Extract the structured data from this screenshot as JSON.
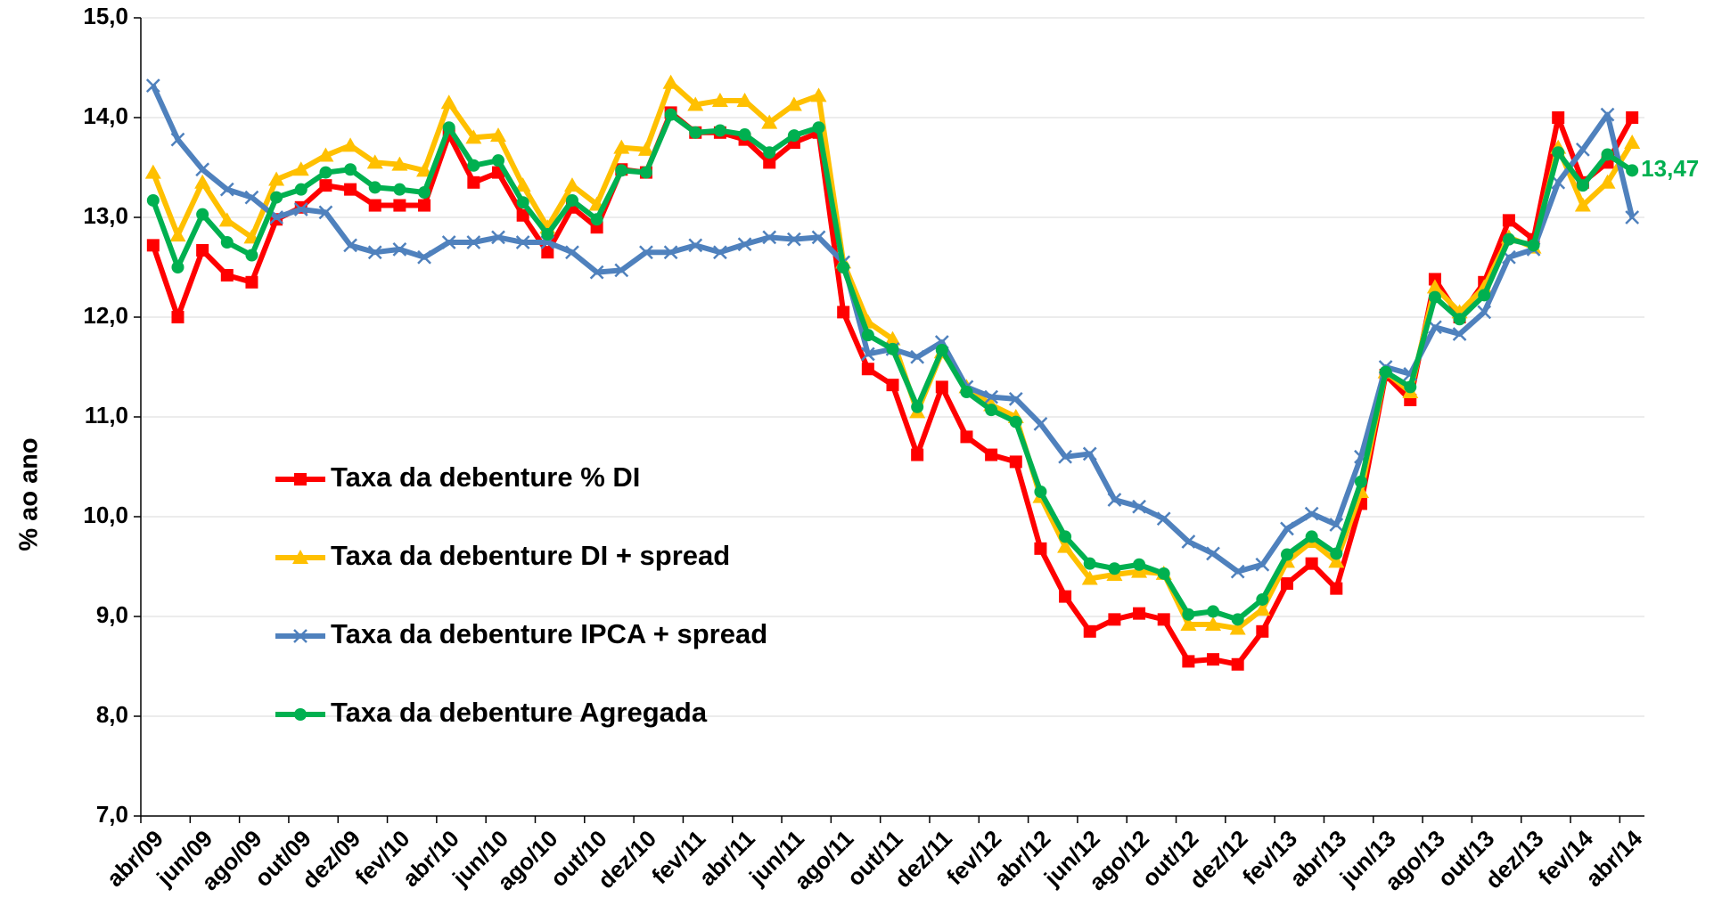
{
  "chart_data": {
    "type": "line",
    "y_label": "% ao ano",
    "categories": [
      "abr/09",
      null,
      "jun/09",
      null,
      "ago/09",
      null,
      "out/09",
      null,
      "dez/09",
      null,
      "fev/10",
      null,
      "abr/10",
      null,
      "jun/10",
      null,
      "ago/10",
      null,
      "out/10",
      null,
      "dez/10",
      null,
      "fev/11",
      null,
      "abr/11",
      null,
      "jun/11",
      null,
      "ago/11",
      null,
      "out/11",
      null,
      "dez/11",
      null,
      "fev/12",
      null,
      "abr/12",
      null,
      "jun/12",
      null,
      "ago/12",
      null,
      "out/12",
      null,
      "dez/12",
      null,
      "fev/13",
      null,
      "abr/13",
      null,
      "jun/13",
      null,
      "ago/13",
      null,
      "out/13",
      null,
      "dez/13",
      null,
      "fev/14",
      null,
      "abr/14"
    ],
    "series": [
      {
        "name": "Taxa da debenture % DI",
        "color": "#ff0000",
        "marker": "square",
        "values": [
          12.72,
          12.0,
          12.67,
          12.42,
          12.35,
          12.98,
          13.1,
          13.32,
          13.28,
          13.12,
          13.12,
          13.12,
          13.83,
          13.35,
          13.45,
          13.02,
          12.65,
          13.1,
          12.9,
          13.48,
          13.45,
          14.05,
          13.85,
          13.85,
          13.78,
          13.55,
          13.75,
          13.85,
          12.05,
          11.48,
          11.32,
          10.62,
          11.3,
          10.8,
          10.62,
          10.55,
          9.68,
          9.2,
          8.85,
          8.97,
          9.03,
          8.97,
          8.55,
          8.57,
          8.52,
          8.85,
          9.33,
          9.53,
          9.28,
          10.13,
          11.42,
          11.17,
          12.38,
          12.0,
          12.35,
          12.97,
          12.78,
          14.0,
          13.35,
          13.55,
          14.0
        ]
      },
      {
        "name": "Taxa da debenture DI + spread",
        "color": "#ffc000",
        "marker": "triangle",
        "values": [
          13.45,
          12.82,
          13.35,
          12.97,
          12.8,
          13.38,
          13.48,
          13.62,
          13.72,
          13.55,
          13.53,
          13.47,
          14.15,
          13.8,
          13.82,
          13.32,
          12.9,
          13.32,
          13.13,
          13.7,
          13.68,
          14.35,
          14.13,
          14.17,
          14.17,
          13.95,
          14.13,
          14.22,
          12.55,
          11.95,
          11.78,
          11.05,
          11.65,
          11.3,
          11.12,
          11.0,
          10.2,
          9.7,
          9.38,
          9.42,
          9.45,
          9.43,
          8.92,
          8.92,
          8.88,
          9.07,
          9.55,
          9.75,
          9.55,
          10.25,
          11.45,
          11.25,
          12.3,
          12.05,
          12.3,
          12.8,
          12.7,
          13.7,
          13.12,
          13.35,
          13.75
        ]
      },
      {
        "name": "Taxa da debenture IPCA + spread",
        "color": "#4f81bd",
        "marker": "x",
        "values": [
          14.32,
          13.78,
          13.48,
          13.28,
          13.2,
          13.0,
          13.08,
          13.05,
          12.72,
          12.65,
          12.68,
          12.6,
          12.75,
          12.75,
          12.8,
          12.75,
          12.75,
          12.65,
          12.45,
          12.47,
          12.65,
          12.65,
          12.72,
          12.65,
          12.73,
          12.8,
          12.78,
          12.8,
          12.55,
          11.63,
          11.68,
          11.6,
          11.75,
          11.3,
          11.2,
          11.18,
          10.93,
          10.6,
          10.63,
          10.17,
          10.1,
          9.98,
          9.75,
          9.63,
          9.45,
          9.52,
          9.88,
          10.03,
          9.92,
          10.6,
          11.5,
          11.43,
          11.9,
          11.83,
          12.05,
          12.6,
          12.68,
          13.35,
          13.68,
          14.03,
          13.0
        ]
      },
      {
        "name": "Taxa da debenture Agregada",
        "color": "#00b050",
        "marker": "circle",
        "values": [
          13.17,
          12.5,
          13.03,
          12.75,
          12.62,
          13.2,
          13.28,
          13.45,
          13.48,
          13.3,
          13.28,
          13.25,
          13.9,
          13.52,
          13.57,
          13.15,
          12.83,
          13.17,
          12.98,
          13.47,
          13.45,
          14.03,
          13.85,
          13.87,
          13.83,
          13.65,
          13.82,
          13.9,
          12.5,
          11.82,
          11.68,
          11.1,
          11.67,
          11.25,
          11.07,
          10.95,
          10.25,
          9.8,
          9.53,
          9.48,
          9.52,
          9.43,
          9.02,
          9.05,
          8.97,
          9.17,
          9.62,
          9.8,
          9.63,
          10.35,
          11.45,
          11.3,
          12.2,
          11.98,
          12.22,
          12.78,
          12.72,
          13.65,
          13.32,
          13.63,
          13.47
        ],
        "value_labels": [
          null,
          null,
          null,
          null,
          null,
          null,
          null,
          null,
          null,
          null,
          null,
          null,
          null,
          null,
          null,
          null,
          null,
          null,
          null,
          null,
          null,
          null,
          null,
          null,
          null,
          null,
          null,
          null,
          null,
          null,
          null,
          null,
          null,
          null,
          null,
          null,
          null,
          null,
          null,
          null,
          null,
          null,
          null,
          null,
          null,
          null,
          null,
          null,
          null,
          null,
          null,
          null,
          null,
          null,
          null,
          null,
          null,
          null,
          null,
          null,
          "13,47"
        ]
      }
    ],
    "ylim": [
      7,
      15
    ],
    "yticks": [
      {
        "value": 7,
        "label": "7,0"
      },
      {
        "value": 8,
        "label": "8,0"
      },
      {
        "value": 9,
        "label": "9,0"
      },
      {
        "value": 10,
        "label": "10,0"
      },
      {
        "value": 11,
        "label": "11,0"
      },
      {
        "value": 12,
        "label": "12,0"
      },
      {
        "value": 13,
        "label": "13,0"
      },
      {
        "value": 14,
        "label": "14,0"
      },
      {
        "value": 15,
        "label": "15,0"
      }
    ],
    "grid": true,
    "legend": "left"
  }
}
